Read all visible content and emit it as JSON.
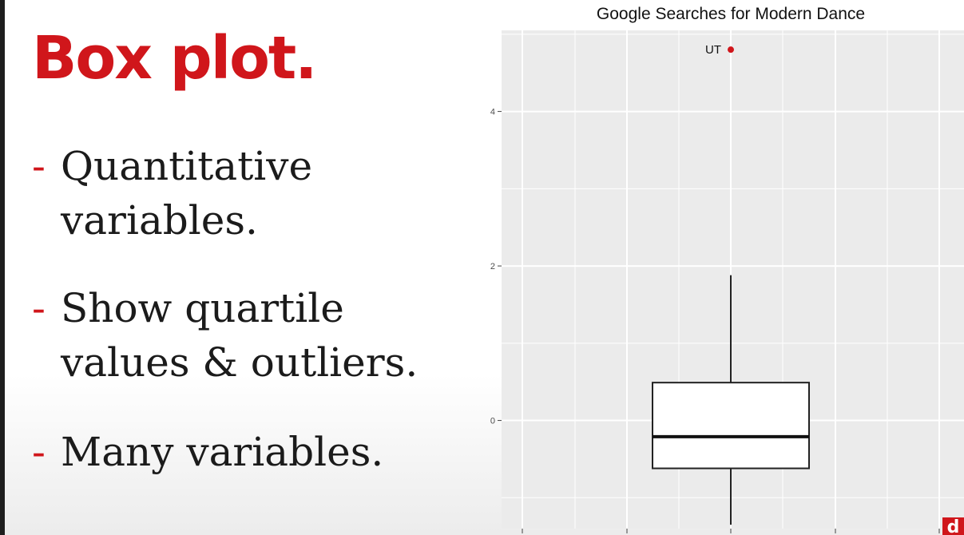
{
  "slide": {
    "title": "Box plot.",
    "bullets": [
      {
        "dash": "-",
        "line1": "Quantitative",
        "line2": "variables."
      },
      {
        "dash": "-",
        "line1": "Show quartile",
        "line2": "values & outliers."
      },
      {
        "dash": "-",
        "line1": "Many variables.",
        "line2": ""
      }
    ],
    "badge_letter": "d"
  },
  "colors": {
    "accent": "#d0161b",
    "panel_bg": "#ebebeb",
    "grid": "#ffffff",
    "text": "#1b1b1b"
  },
  "chart_data": {
    "type": "box",
    "title": "Google Searches for Modern Dance",
    "xlabel": "",
    "ylabel": "",
    "ylim": [
      -1.4,
      5.05
    ],
    "yticks": [
      0,
      2,
      4
    ],
    "grid": true,
    "box": {
      "lower_whisker": -1.35,
      "q1": -0.62,
      "median": -0.21,
      "q3": 0.49,
      "upper_whisker": 1.88
    },
    "outliers": [
      {
        "label": "UT",
        "value": 4.8
      }
    ]
  }
}
